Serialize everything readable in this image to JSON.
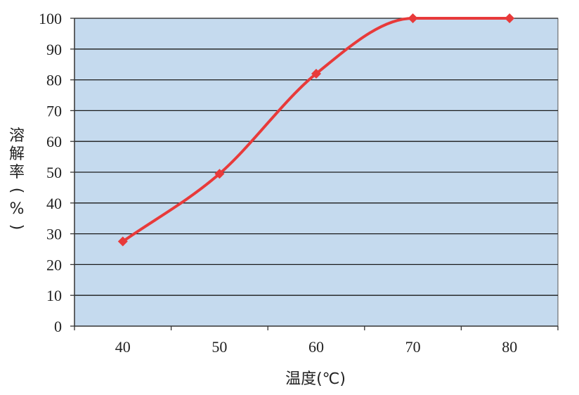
{
  "chart_data": {
    "type": "line",
    "x": [
      40,
      50,
      60,
      70,
      80
    ],
    "series": [
      {
        "values": [
          27.5,
          49.5,
          82,
          100,
          100
        ],
        "color": "#e83a3a"
      }
    ],
    "xlabel": "温度(℃)",
    "ylabel": "溶解率(%)",
    "xticks": [
      "40",
      "50",
      "60",
      "70",
      "80"
    ],
    "yticks": [
      "0",
      "10",
      "20",
      "30",
      "40",
      "50",
      "60",
      "70",
      "80",
      "90",
      "100"
    ],
    "ylim": [
      0,
      100
    ],
    "xlim": [
      35,
      85
    ],
    "grid": "horizontal",
    "plot_background": "#c5daee",
    "smooth": true
  }
}
